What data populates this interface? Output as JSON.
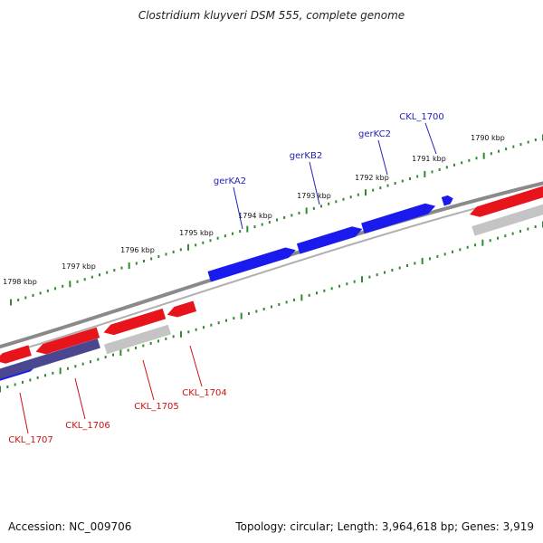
{
  "title": "Clostridium kluyveri DSM 555, complete genome",
  "footer": {
    "accession": "Accession: NC_009706",
    "summary": "Topology: circular; Length: 3,964,618 bp; Genes: 3,919"
  },
  "colors": {
    "forward_gene": "#1a1aee",
    "reverse_gene": "#e8141c",
    "pseudo_gene": "#c4c4c4",
    "dark_gene": "#4a4690",
    "tick": "#2e8b2e",
    "backbone": "#8a8a8a",
    "forward_label": "#2222bb",
    "reverse_label": "#cc1111"
  },
  "kbp_labels": [
    "1790 kbp",
    "1791 kbp",
    "1792 kbp",
    "1793 kbp",
    "1794 kbp",
    "1795 kbp",
    "1796 kbp",
    "1797 kbp",
    "1798 kbp"
  ],
  "forward_labels": [
    "CKL_1700",
    "gerKC2",
    "gerKB2",
    "gerKA2"
  ],
  "reverse_labels": [
    "CKL_1704",
    "CKL_1705",
    "CKL_1706",
    "CKL_1707"
  ]
}
